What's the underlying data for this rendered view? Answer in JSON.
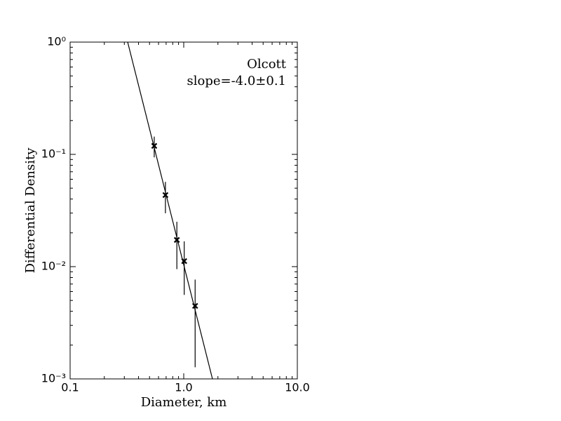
{
  "chart_data": {
    "type": "scatter",
    "annotations": [
      "Olcott",
      "slope=-4.0±0.1"
    ],
    "xlabel": "Diameter, km",
    "ylabel": "Differential Density",
    "xscale": "log",
    "yscale": "log",
    "xlim": [
      0.1,
      10
    ],
    "ylim": [
      0.001,
      1
    ],
    "xticks": [
      0.1,
      {
        "value": 1,
        "label": "1.0"
      },
      {
        "value": 10,
        "label": "10.0"
      }
    ],
    "yticks": [
      {
        "value": 0.001,
        "label": "10⁻³"
      },
      {
        "value": 0.01,
        "label": "10⁻²"
      },
      {
        "value": 0.1,
        "label": "10⁻¹"
      },
      {
        "value": 1,
        "label": "10⁰"
      }
    ],
    "series": [
      {
        "color": "#000000",
        "marker": "x",
        "x": [
          0.55,
          0.69,
          0.87,
          1.01,
          1.26
        ],
        "values": [
          0.119,
          0.0434,
          0.0173,
          0.0112,
          0.00447
        ],
        "errors": [
          0.025,
          0.0135,
          0.0078,
          0.0056,
          0.0032
        ]
      }
    ],
    "fit": {
      "color": "#000000",
      "x": [
        0.321,
        1.79
      ],
      "values": [
        1,
        0.001
      ]
    }
  }
}
